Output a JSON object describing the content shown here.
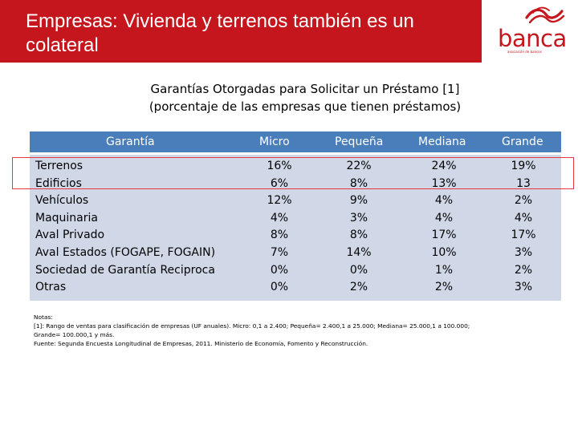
{
  "header": {
    "title_line1": "Empresas: Vivienda y terrenos también es un",
    "title_line2": "colateral",
    "logo_text": "banca",
    "logo_subtext": "asociación de bancos",
    "brand_color": "#c4161c"
  },
  "caption": {
    "line1": "Garantías Otorgadas para Solicitar un Préstamo [1]",
    "line2": "(porcentaje de las empresas que tienen préstamos)"
  },
  "table": {
    "header_color": "#4a7ebb",
    "body_color": "#d0d8e8",
    "columns": [
      "Garantía",
      "Micro",
      "Pequeña",
      "Mediana",
      "Grande"
    ],
    "rows": [
      {
        "label": "Terrenos",
        "micro": "16%",
        "pequena": "22%",
        "mediana": "24%",
        "grande": "19%"
      },
      {
        "label": "Edificios",
        "micro": "6%",
        "pequena": "8%",
        "mediana": "13%",
        "grande": "13"
      },
      {
        "label": "Vehículos",
        "micro": "12%",
        "pequena": "9%",
        "mediana": "4%",
        "grande": "2%"
      },
      {
        "label": "Maquinaria",
        "micro": "4%",
        "pequena": "3%",
        "mediana": "4%",
        "grande": "4%"
      },
      {
        "label": "Aval Privado",
        "micro": "8%",
        "pequena": "8%",
        "mediana": "17%",
        "grande": "17%"
      },
      {
        "label": "Aval Estados (FOGAPE, FOGAIN)",
        "micro": "7%",
        "pequena": "14%",
        "mediana": "10%",
        "grande": "3%"
      },
      {
        "label": "Sociedad de Garantía Reciproca",
        "micro": "0%",
        "pequena": "0%",
        "mediana": "1%",
        "grande": "2%"
      },
      {
        "label": "Otras",
        "micro": "0%",
        "pequena": "2%",
        "mediana": "2%",
        "grande": "3%"
      }
    ]
  },
  "notes": {
    "line1": "Notas:",
    "line2": "[1]: Rango de ventas para clasificación de empresas (UF anuales). Micro: 0,1 a 2.400; Pequeña= 2.400,1 a 25.000; Mediana= 25.000,1 a 100.000;",
    "line3": "Grande= 100.000,1 y más.",
    "line4": "Fuente: Segunda Encuesta Longitudinal de Empresas, 2011. Ministerio de Economía, Fomento y Reconstrucción."
  }
}
